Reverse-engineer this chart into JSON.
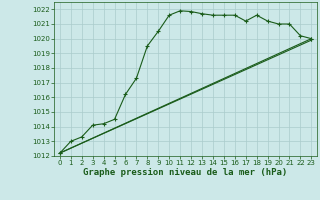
{
  "title": "Graphe pression niveau de la mer (hPa)",
  "background_color": "#cce8e8",
  "grid_color": "#aacccc",
  "line_color": "#1a5c1a",
  "xlim": [
    -0.5,
    23.5
  ],
  "ylim": [
    1012,
    1022.5
  ],
  "yticks": [
    1012,
    1013,
    1014,
    1015,
    1016,
    1017,
    1018,
    1019,
    1020,
    1021,
    1022
  ],
  "xticks": [
    0,
    1,
    2,
    3,
    4,
    5,
    6,
    7,
    8,
    9,
    10,
    11,
    12,
    13,
    14,
    15,
    16,
    17,
    18,
    19,
    20,
    21,
    22,
    23
  ],
  "series": [
    {
      "x": [
        0,
        1,
        2,
        3,
        4,
        5,
        6,
        7,
        8,
        9,
        10,
        11,
        12,
        13,
        14,
        15,
        16,
        17,
        18,
        19,
        20,
        21,
        22,
        23
      ],
      "y": [
        1012.2,
        1013.0,
        1013.3,
        1014.1,
        1014.2,
        1014.5,
        1016.2,
        1017.3,
        1019.5,
        1020.5,
        1021.6,
        1021.9,
        1021.85,
        1021.7,
        1021.6,
        1021.6,
        1021.6,
        1021.2,
        1021.6,
        1021.2,
        1021.0,
        1021.0,
        1020.2,
        1020.0
      ],
      "has_marker": true
    },
    {
      "x": [
        0,
        23
      ],
      "y": [
        1012.2,
        1020.0
      ],
      "has_marker": true
    },
    {
      "x": [
        0,
        23
      ],
      "y": [
        1012.2,
        1019.9
      ],
      "has_marker": false
    }
  ]
}
